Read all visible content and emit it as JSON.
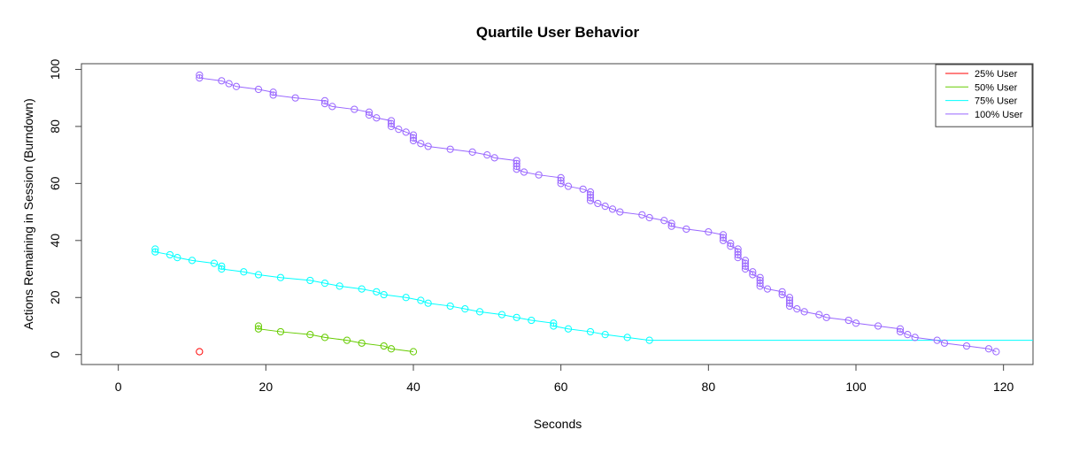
{
  "chart_data": {
    "type": "line",
    "title": "Quartile User Behavior",
    "xlabel": "Seconds",
    "ylabel": "Actions Remaining in Session (Burndown)",
    "xlim": [
      -5,
      124
    ],
    "ylim": [
      -3.5,
      102
    ],
    "x_ticks": [
      "0",
      "20",
      "40",
      "60",
      "80",
      "100",
      "120"
    ],
    "y_ticks": [
      "0",
      "20",
      "40",
      "60",
      "80",
      "100"
    ],
    "grid": false,
    "legend_position": "top-right",
    "series": [
      {
        "name": "25% User",
        "color": "#ff0000",
        "points": [
          [
            11,
            1
          ]
        ]
      },
      {
        "name": "50% User",
        "color": "#66cc00",
        "points": [
          [
            19,
            10
          ],
          [
            19,
            9
          ],
          [
            22,
            8
          ],
          [
            26,
            7
          ],
          [
            28,
            6
          ],
          [
            31,
            5
          ],
          [
            33,
            4
          ],
          [
            36,
            3
          ],
          [
            37,
            2
          ],
          [
            40,
            1
          ]
        ]
      },
      {
        "name": "75% User",
        "color": "#00ffff",
        "points": [
          [
            5,
            37
          ],
          [
            5,
            36
          ],
          [
            7,
            35
          ],
          [
            8,
            34
          ],
          [
            10,
            33
          ],
          [
            13,
            32
          ],
          [
            14,
            31
          ],
          [
            14,
            30
          ],
          [
            17,
            29
          ],
          [
            19,
            28
          ],
          [
            22,
            27
          ],
          [
            26,
            26
          ],
          [
            28,
            25
          ],
          [
            30,
            24
          ],
          [
            33,
            23
          ],
          [
            35,
            22
          ],
          [
            36,
            21
          ],
          [
            39,
            20
          ],
          [
            41,
            19
          ],
          [
            42,
            18
          ],
          [
            45,
            17
          ],
          [
            47,
            16
          ],
          [
            49,
            15
          ],
          [
            52,
            14
          ],
          [
            54,
            13
          ],
          [
            56,
            12
          ],
          [
            59,
            11
          ],
          [
            59,
            10
          ],
          [
            61,
            9
          ],
          [
            64,
            8
          ],
          [
            66,
            7
          ],
          [
            69,
            6
          ],
          [
            72,
            5
          ]
        ],
        "tail_to": [
          124,
          5
        ]
      },
      {
        "name": "100% User",
        "color": "#9966ff",
        "points": [
          [
            11,
            98
          ],
          [
            11,
            97
          ],
          [
            14,
            96
          ],
          [
            15,
            95
          ],
          [
            16,
            94
          ],
          [
            19,
            93
          ],
          [
            21,
            92
          ],
          [
            21,
            91
          ],
          [
            24,
            90
          ],
          [
            28,
            89
          ],
          [
            28,
            88
          ],
          [
            29,
            87
          ],
          [
            32,
            86
          ],
          [
            34,
            85
          ],
          [
            34,
            84
          ],
          [
            35,
            83
          ],
          [
            37,
            82
          ],
          [
            37,
            81
          ],
          [
            37,
            80
          ],
          [
            38,
            79
          ],
          [
            39,
            78
          ],
          [
            40,
            77
          ],
          [
            40,
            76
          ],
          [
            40,
            75
          ],
          [
            41,
            74
          ],
          [
            42,
            73
          ],
          [
            45,
            72
          ],
          [
            48,
            71
          ],
          [
            50,
            70
          ],
          [
            51,
            69
          ],
          [
            54,
            68
          ],
          [
            54,
            67
          ],
          [
            54,
            66
          ],
          [
            54,
            65
          ],
          [
            55,
            64
          ],
          [
            57,
            63
          ],
          [
            60,
            62
          ],
          [
            60,
            61
          ],
          [
            60,
            60
          ],
          [
            61,
            59
          ],
          [
            63,
            58
          ],
          [
            64,
            57
          ],
          [
            64,
            56
          ],
          [
            64,
            55
          ],
          [
            64,
            54
          ],
          [
            65,
            53
          ],
          [
            66,
            52
          ],
          [
            67,
            51
          ],
          [
            68,
            50
          ],
          [
            71,
            49
          ],
          [
            72,
            48
          ],
          [
            74,
            47
          ],
          [
            75,
            46
          ],
          [
            75,
            45
          ],
          [
            77,
            44
          ],
          [
            80,
            43
          ],
          [
            82,
            42
          ],
          [
            82,
            41
          ],
          [
            82,
            40
          ],
          [
            83,
            39
          ],
          [
            83,
            38
          ],
          [
            84,
            37
          ],
          [
            84,
            36
          ],
          [
            84,
            35
          ],
          [
            84,
            34
          ],
          [
            85,
            33
          ],
          [
            85,
            32
          ],
          [
            85,
            31
          ],
          [
            85,
            30
          ],
          [
            86,
            29
          ],
          [
            86,
            28
          ],
          [
            87,
            27
          ],
          [
            87,
            26
          ],
          [
            87,
            25
          ],
          [
            87,
            24
          ],
          [
            88,
            23
          ],
          [
            90,
            22
          ],
          [
            90,
            21
          ],
          [
            91,
            20
          ],
          [
            91,
            19
          ],
          [
            91,
            18
          ],
          [
            91,
            17
          ],
          [
            92,
            16
          ],
          [
            93,
            15
          ],
          [
            95,
            14
          ],
          [
            96,
            13
          ],
          [
            99,
            12
          ],
          [
            100,
            11
          ],
          [
            103,
            10
          ],
          [
            106,
            9
          ],
          [
            106,
            8
          ],
          [
            107,
            7
          ],
          [
            108,
            6
          ],
          [
            111,
            5
          ],
          [
            112,
            4
          ],
          [
            115,
            3
          ],
          [
            118,
            2
          ],
          [
            119,
            1
          ]
        ]
      }
    ]
  }
}
